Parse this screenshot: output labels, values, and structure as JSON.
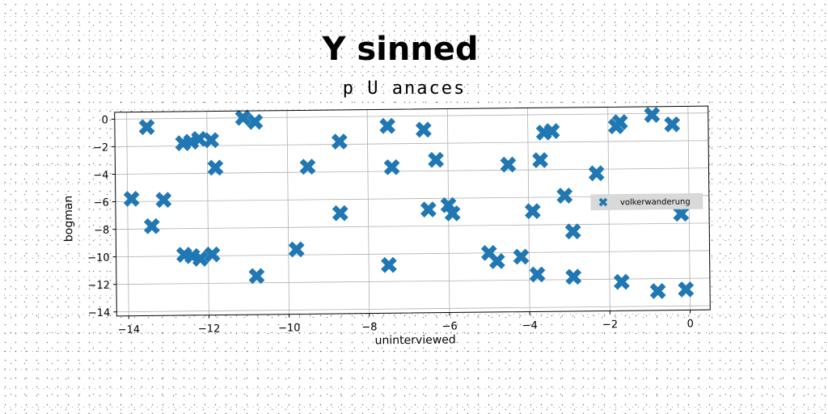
{
  "chart_data": {
    "type": "scatter",
    "title": "Y sinned",
    "subtitle": "p U anaces",
    "xlabel": "uninterviewed",
    "ylabel": "bogman",
    "xlim": [
      -14.3,
      0.5
    ],
    "ylim": [
      -14.3,
      0.5
    ],
    "xticks": [
      -14,
      -12,
      -10,
      -8,
      -6,
      -4,
      -2,
      0
    ],
    "yticks": [
      0,
      -2,
      -4,
      -6,
      -8,
      -10,
      -12,
      -14
    ],
    "xtick_labels": [
      "−14",
      "−12",
      "−10",
      "−8",
      "−6",
      "−4",
      "−2",
      "0"
    ],
    "ytick_labels": [
      "0",
      "−2",
      "−4",
      "−6",
      "−8",
      "−10",
      "−12",
      "−14"
    ],
    "grid": true,
    "legend_position": "center-right",
    "marker": "X",
    "color": "#1f77b4",
    "series": [
      {
        "name": "volkerwanderung",
        "points": [
          [
            -13.5,
            -0.6
          ],
          [
            -13.9,
            -5.8
          ],
          [
            -13.4,
            -7.8
          ],
          [
            -13.1,
            -5.9
          ],
          [
            -12.6,
            -1.8
          ],
          [
            -12.4,
            -1.7
          ],
          [
            -12.2,
            -1.5
          ],
          [
            -11.9,
            -1.6
          ],
          [
            -11.8,
            -3.6
          ],
          [
            -12.6,
            -9.9
          ],
          [
            -12.4,
            -10.0
          ],
          [
            -12.2,
            -10.2
          ],
          [
            -11.9,
            -9.9
          ],
          [
            -11.1,
            0.0
          ],
          [
            -10.8,
            -0.3
          ],
          [
            -10.8,
            -11.5
          ],
          [
            -9.8,
            -9.6
          ],
          [
            -9.5,
            -3.6
          ],
          [
            -8.7,
            -1.8
          ],
          [
            -8.7,
            -7.0
          ],
          [
            -7.5,
            -0.7
          ],
          [
            -7.4,
            -3.7
          ],
          [
            -7.5,
            -10.8
          ],
          [
            -6.6,
            -1.0
          ],
          [
            -6.5,
            -6.8
          ],
          [
            -6.3,
            -3.2
          ],
          [
            -6.0,
            -6.5
          ],
          [
            -5.9,
            -7.1
          ],
          [
            -5.0,
            -10.0
          ],
          [
            -4.8,
            -10.6
          ],
          [
            -4.5,
            -3.6
          ],
          [
            -4.2,
            -10.3
          ],
          [
            -3.9,
            -7.0
          ],
          [
            -3.8,
            -11.6
          ],
          [
            -3.7,
            -3.3
          ],
          [
            -3.6,
            -1.3
          ],
          [
            -3.4,
            -1.2
          ],
          [
            -3.1,
            -5.9
          ],
          [
            -2.9,
            -8.5
          ],
          [
            -2.9,
            -11.8
          ],
          [
            -2.3,
            -4.3
          ],
          [
            -1.8,
            -0.9
          ],
          [
            -1.7,
            -0.6
          ],
          [
            -1.7,
            -12.2
          ],
          [
            -0.9,
            -0.1
          ],
          [
            -0.8,
            -12.9
          ],
          [
            -0.4,
            -0.8
          ],
          [
            -0.2,
            -7.3
          ],
          [
            -0.1,
            -12.8
          ]
        ]
      }
    ]
  }
}
